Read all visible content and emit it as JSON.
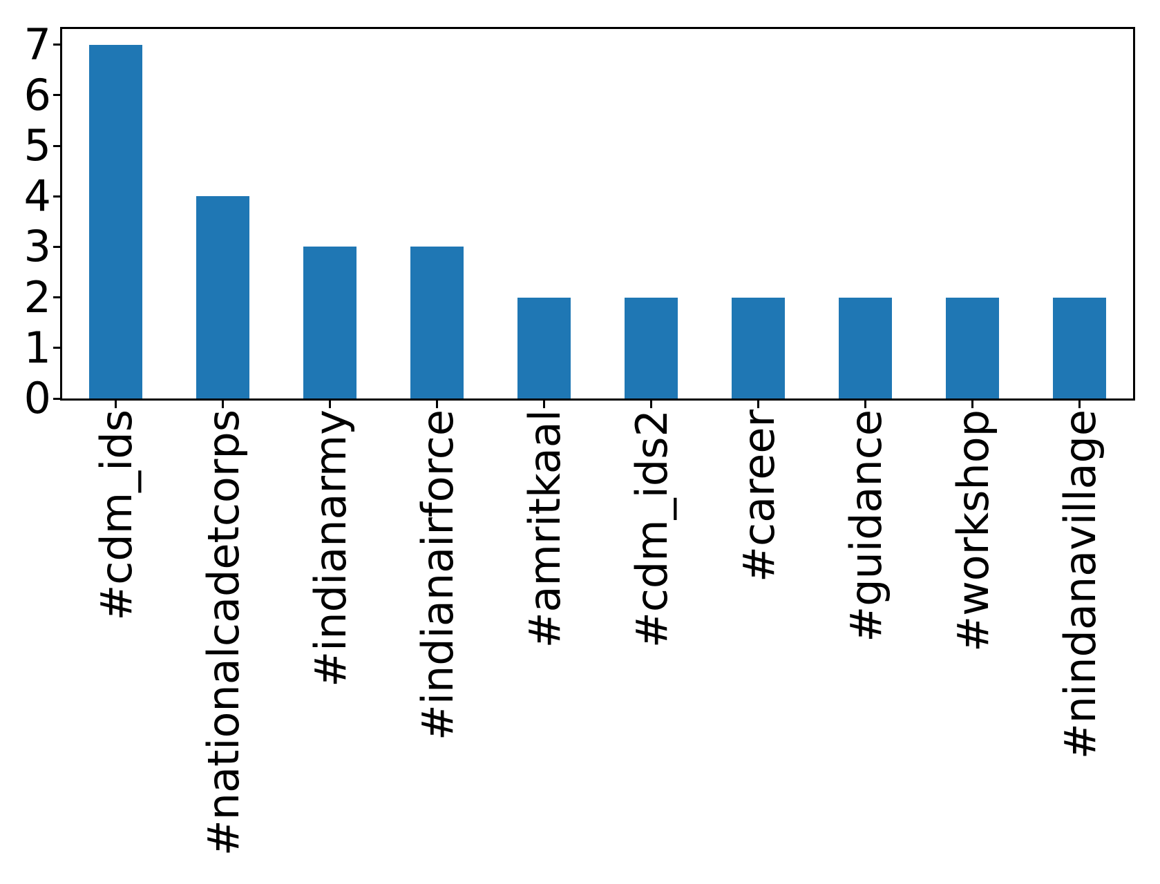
{
  "figure": {
    "background_color": "#ffffff"
  },
  "chart_data": {
    "type": "bar",
    "title": "",
    "xlabel": "",
    "ylabel": "",
    "categories": [
      "#cdm_ids",
      "#nationalcadetcorps",
      "#indianarmy",
      "#indianairforce",
      "#amritkaal",
      "#cdm_ids2",
      "#career",
      "#guidance",
      "#workshop",
      "#nindanavillage"
    ],
    "values": [
      7,
      4,
      3,
      3,
      2,
      2,
      2,
      2,
      2,
      2
    ],
    "yticks": [
      0,
      1,
      2,
      3,
      4,
      5,
      6,
      7
    ],
    "ylim": [
      0,
      7.31
    ],
    "bar_color": "#1f77b4",
    "axis_color": "#000000",
    "text_color": "#000000",
    "grid": false,
    "legend_position": "none",
    "x_tick_rotation_deg": 90,
    "bar_width_fraction": 0.5
  }
}
